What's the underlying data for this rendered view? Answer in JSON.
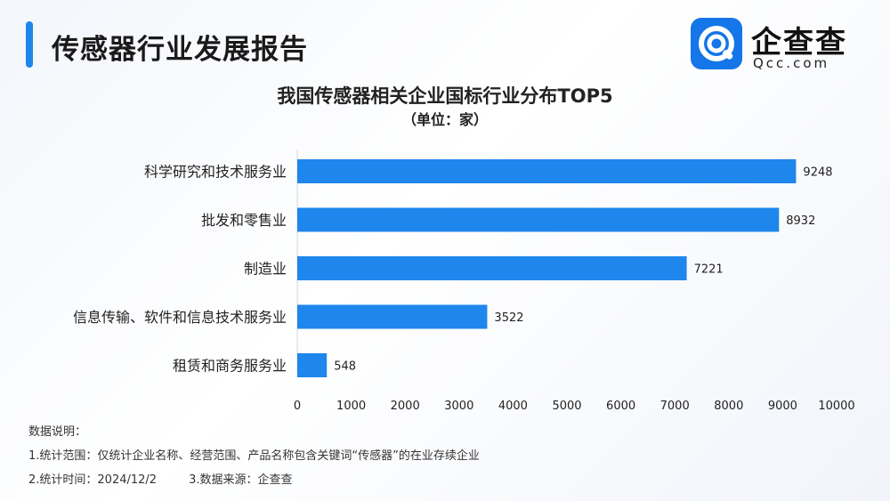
{
  "header": {
    "title": "传感器行业发展报告"
  },
  "logo": {
    "name": "企查查",
    "domain": "Qcc.com",
    "brand_color": "#1476e8"
  },
  "chart_data": {
    "type": "bar",
    "orientation": "horizontal",
    "title": "我国传感器相关企业国标行业分布TOP5",
    "subtitle": "（单位：家）",
    "categories": [
      "科学研究和技术服务业",
      "批发和零售业",
      "制造业",
      "信息传输、软件和信息技术服务业",
      "租赁和商务服务业"
    ],
    "values": [
      9248,
      8932,
      7221,
      3522,
      548
    ],
    "xlim": [
      0,
      10000
    ],
    "xticks": [
      0,
      1000,
      2000,
      3000,
      4000,
      5000,
      6000,
      7000,
      8000,
      9000,
      10000
    ],
    "bar_color": "#1e86ec",
    "grid": false,
    "legend": "none"
  },
  "notes": {
    "heading": "数据说明：",
    "scope": "1.统计范围：仅统计企业名称、经营范围、产品名称包含关键词“传感器”的在业存续企业",
    "time": "2.统计时间：2024/12/2",
    "source": "3.数据来源：企查查"
  }
}
